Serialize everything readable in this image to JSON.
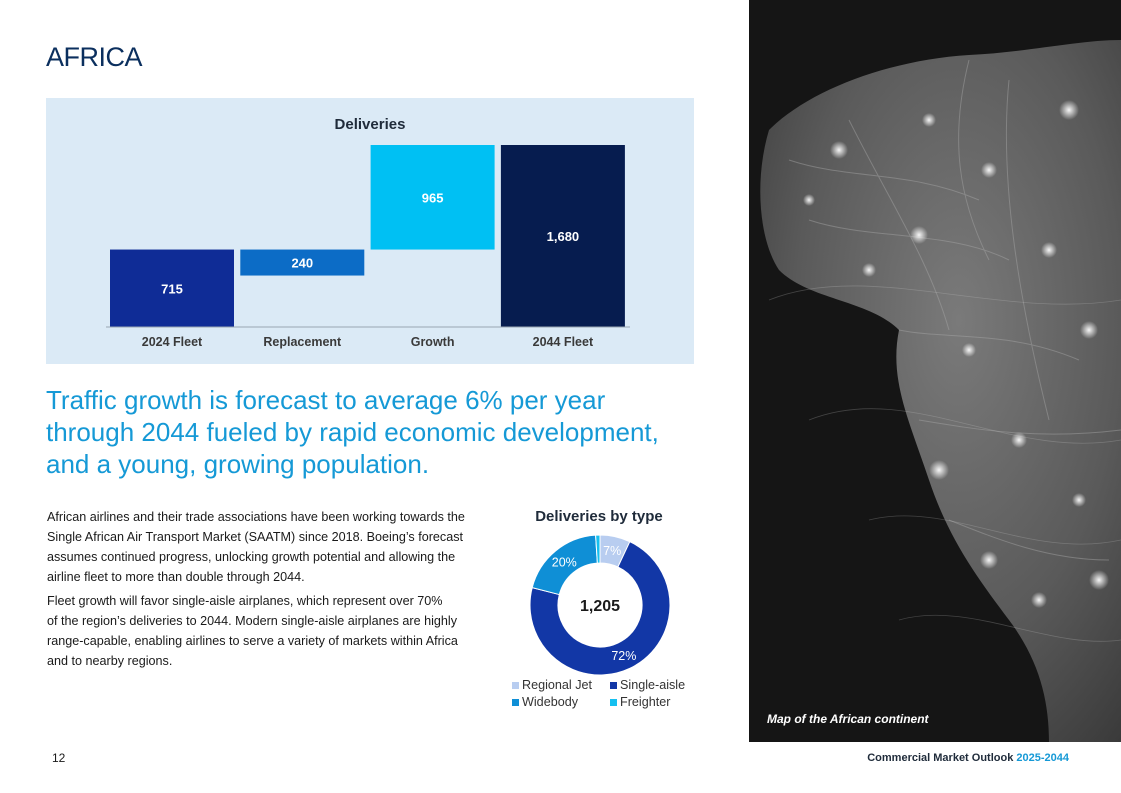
{
  "page": {
    "title": "AFRICA",
    "headline": [
      "Traffic growth is forecast to average 6% per year",
      "through 2044 fueled by rapid economic development,",
      "and a young, growing population."
    ],
    "paragraphs": [
      [
        "African airlines and their trade associations have been working towards the",
        "Single African Air Transport Market (SAATM) since 2018. Boeing’s forecast",
        "assumes continued progress, unlocking growth potential and allowing the",
        "airline fleet to more than double through 2044."
      ],
      [
        "Fleet growth will favor single-aisle airplanes, which represent over 70%",
        "of the region’s deliveries to 2044. Modern single-aisle airplanes are highly",
        "range-capable, enabling airlines to serve a variety of markets within Africa",
        "and to nearby regions."
      ]
    ],
    "map_caption": "Map of the African continent",
    "footer": {
      "page_number": "12",
      "publication": "Commercial Market Outlook",
      "years": "2025-2044"
    }
  },
  "chart_data": [
    {
      "type": "bar",
      "subtype": "waterfall",
      "title": "Deliveries",
      "categories": [
        "2024 Fleet",
        "Replacement",
        "Growth",
        "2044 Fleet"
      ],
      "values": [
        715,
        240,
        965,
        1680
      ],
      "value_labels": [
        "715",
        "240",
        "965",
        "1,680"
      ],
      "bar_base": [
        0,
        475,
        715,
        0
      ],
      "bar_top": [
        715,
        715,
        1680,
        1680
      ],
      "colors": [
        "#0f2c96",
        "#0c6cc6",
        "#00c0f3",
        "#061c4f"
      ],
      "xlabel": "",
      "ylabel": "",
      "ylim": [
        0,
        1680
      ],
      "grid": false
    },
    {
      "type": "pie",
      "subtype": "donut",
      "title": "Deliveries by type",
      "center_label": "1,205",
      "categories": [
        "Regional Jet",
        "Single-aisle",
        "Widebody",
        "Freighter"
      ],
      "values": [
        7,
        72,
        20,
        1
      ],
      "value_labels": [
        "7%",
        "72%",
        "20%",
        ""
      ],
      "colors": [
        "#b8cdf0",
        "#1237a6",
        "#0f8fd6",
        "#16c0f0"
      ],
      "legend": "bottom"
    }
  ]
}
